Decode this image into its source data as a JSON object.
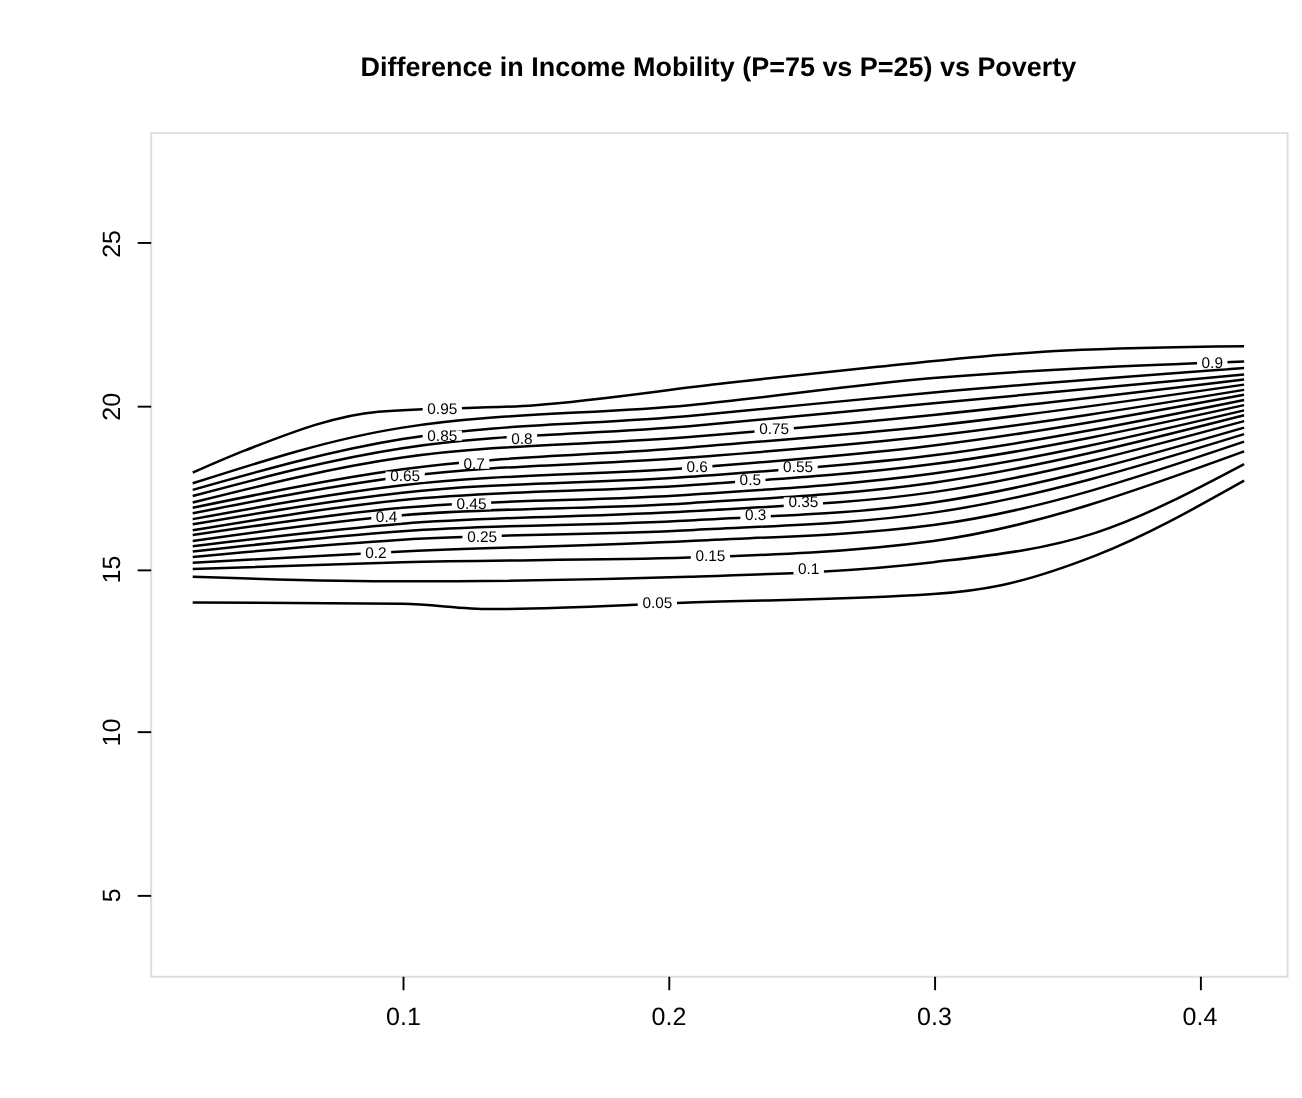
{
  "chart_data": {
    "type": "line",
    "title": "Difference in Income Mobility (P=75 vs P=25) vs Poverty",
    "xlim": [
      0.005,
      0.433
    ],
    "ylim": [
      2.5,
      28.4
    ],
    "xticks": [
      0.1,
      0.2,
      0.3,
      0.4
    ],
    "yticks": [
      5,
      10,
      15,
      20,
      25
    ],
    "grid": false,
    "legend": false,
    "line_style": "solid",
    "marker": "none",
    "series": [
      {
        "name": "0.05",
        "color": "#000000",
        "x": [
          0.021,
          0.1,
          0.133,
          0.208,
          0.3,
          0.326,
          0.361,
          0.417
        ],
        "values": [
          13.96,
          13.92,
          13.76,
          13.96,
          14.22,
          14.5,
          15.4,
          17.7
        ]
      },
      {
        "name": "0.1",
        "color": "#000000",
        "x": [
          0.021,
          0.1,
          0.208,
          0.3,
          0.361,
          0.417
        ],
        "values": [
          14.75,
          14.61,
          14.75,
          15.2,
          16.1,
          18.21
        ]
      },
      {
        "name": "0.15",
        "color": "#000000",
        "x": [
          0.021,
          0.1,
          0.208,
          0.3,
          0.417
        ],
        "values": [
          14.99,
          15.2,
          15.34,
          15.85,
          18.6
        ]
      },
      {
        "name": "0.2",
        "color": "#000000",
        "x": [
          0.021,
          0.1,
          0.208,
          0.3,
          0.417
        ],
        "values": [
          15.18,
          15.53,
          15.85,
          16.34,
          18.9
        ]
      },
      {
        "name": "0.25",
        "color": "#000000",
        "x": [
          0.021,
          0.1,
          0.208,
          0.3,
          0.417
        ],
        "values": [
          15.36,
          15.89,
          16.18,
          16.72,
          19.13
        ]
      },
      {
        "name": "0.3",
        "color": "#000000",
        "x": [
          0.021,
          0.1,
          0.208,
          0.3,
          0.417
        ],
        "values": [
          15.53,
          16.15,
          16.48,
          17.03,
          19.33
        ]
      },
      {
        "name": "0.35",
        "color": "#000000",
        "x": [
          0.021,
          0.1,
          0.208,
          0.3,
          0.417
        ],
        "values": [
          15.69,
          16.38,
          16.76,
          17.35,
          19.53
        ]
      },
      {
        "name": "0.4",
        "color": "#000000",
        "x": [
          0.021,
          0.1,
          0.208,
          0.3,
          0.417
        ],
        "values": [
          15.85,
          16.64,
          17.01,
          17.64,
          19.71
        ]
      },
      {
        "name": "0.45",
        "color": "#000000",
        "x": [
          0.021,
          0.1,
          0.208,
          0.3,
          0.417
        ],
        "values": [
          16.03,
          16.87,
          17.27,
          17.92,
          19.86
        ]
      },
      {
        "name": "0.5",
        "color": "#000000",
        "x": [
          0.021,
          0.1,
          0.208,
          0.3,
          0.417
        ],
        "values": [
          16.18,
          17.11,
          17.56,
          18.21,
          20.02
        ]
      },
      {
        "name": "0.55",
        "color": "#000000",
        "x": [
          0.021,
          0.1,
          0.208,
          0.3,
          0.417
        ],
        "values": [
          16.36,
          17.33,
          17.82,
          18.48,
          20.18
        ]
      },
      {
        "name": "0.6",
        "color": "#000000",
        "x": [
          0.021,
          0.1,
          0.208,
          0.3,
          0.417
        ],
        "values": [
          16.52,
          17.56,
          18.09,
          18.78,
          20.34
        ]
      },
      {
        "name": "0.65",
        "color": "#000000",
        "x": [
          0.021,
          0.1,
          0.208,
          0.3,
          0.417
        ],
        "values": [
          16.7,
          17.82,
          18.41,
          19.08,
          20.49
        ]
      },
      {
        "name": "0.7",
        "color": "#000000",
        "x": [
          0.021,
          0.1,
          0.208,
          0.3,
          0.417
        ],
        "values": [
          16.87,
          18.05,
          18.72,
          19.39,
          20.65
        ]
      },
      {
        "name": "0.75",
        "color": "#000000",
        "x": [
          0.021,
          0.1,
          0.208,
          0.3,
          0.417
        ],
        "values": [
          17.03,
          18.41,
          19.04,
          19.72,
          20.81
        ]
      },
      {
        "name": "0.8",
        "color": "#000000",
        "x": [
          0.021,
          0.1,
          0.208,
          0.3,
          0.417
        ],
        "values": [
          17.23,
          18.7,
          19.37,
          20.08,
          20.96
        ]
      },
      {
        "name": "0.85",
        "color": "#000000",
        "x": [
          0.021,
          0.1,
          0.208,
          0.3,
          0.417
        ],
        "values": [
          17.42,
          18.98,
          19.69,
          20.41,
          21.16
        ]
      },
      {
        "name": "0.9",
        "color": "#000000",
        "x": [
          0.021,
          0.1,
          0.208,
          0.3,
          0.417
        ],
        "values": [
          17.62,
          19.33,
          20.02,
          20.85,
          21.36
        ]
      },
      {
        "name": "0.95",
        "color": "#000000",
        "x": [
          0.021,
          0.041,
          0.091,
          0.15,
          0.222,
          0.279,
          0.35,
          0.417
        ],
        "values": [
          17.95,
          18.64,
          19.82,
          20.02,
          20.7,
          21.2,
          21.7,
          21.83
        ]
      }
    ]
  }
}
